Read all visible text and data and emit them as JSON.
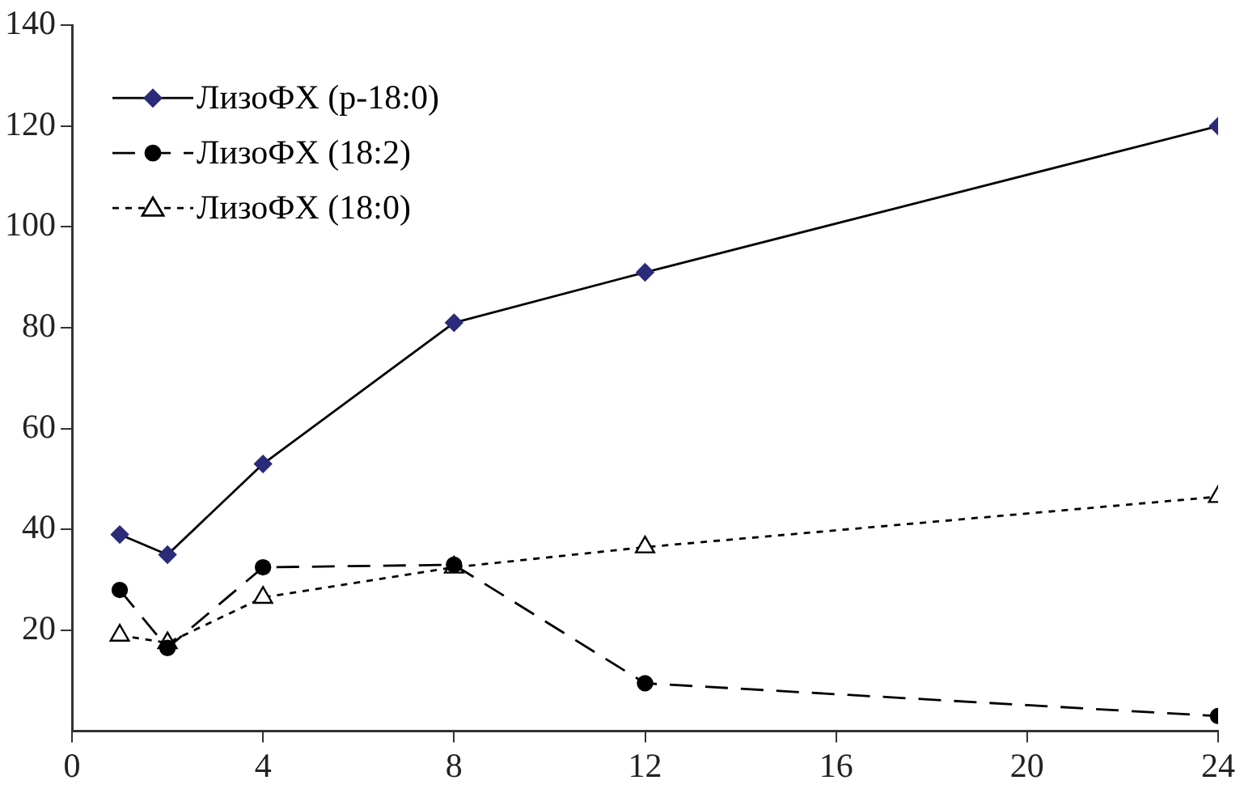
{
  "chart_data": {
    "type": "line",
    "x": [
      1,
      2,
      4,
      8,
      12,
      24
    ],
    "xlim": [
      0,
      24
    ],
    "xticks": [
      0,
      4,
      8,
      12,
      16,
      20,
      24
    ],
    "ylim": [
      0,
      140
    ],
    "yticks": [
      20,
      40,
      60,
      80,
      100,
      120,
      140
    ],
    "grid": false,
    "legend": "top left",
    "series": [
      {
        "name": "ЛизоФХ (p-18:0)",
        "color": "#000000",
        "marker": "diamond",
        "line_style": "solid",
        "values": [
          39,
          35,
          53,
          81,
          91,
          120
        ]
      },
      {
        "name": "ЛизоФХ (18:2)",
        "color": "#000000",
        "marker": "circle",
        "line_style": "dashed",
        "values": [
          28,
          16.5,
          32.5,
          33,
          9.5,
          3
        ]
      },
      {
        "name": "ЛизоФХ (18:0)",
        "color": "#000000",
        "marker": "triangle",
        "line_style": "dotted",
        "values": [
          19,
          17.5,
          26.5,
          32.5,
          36.5,
          46.5
        ]
      }
    ]
  }
}
